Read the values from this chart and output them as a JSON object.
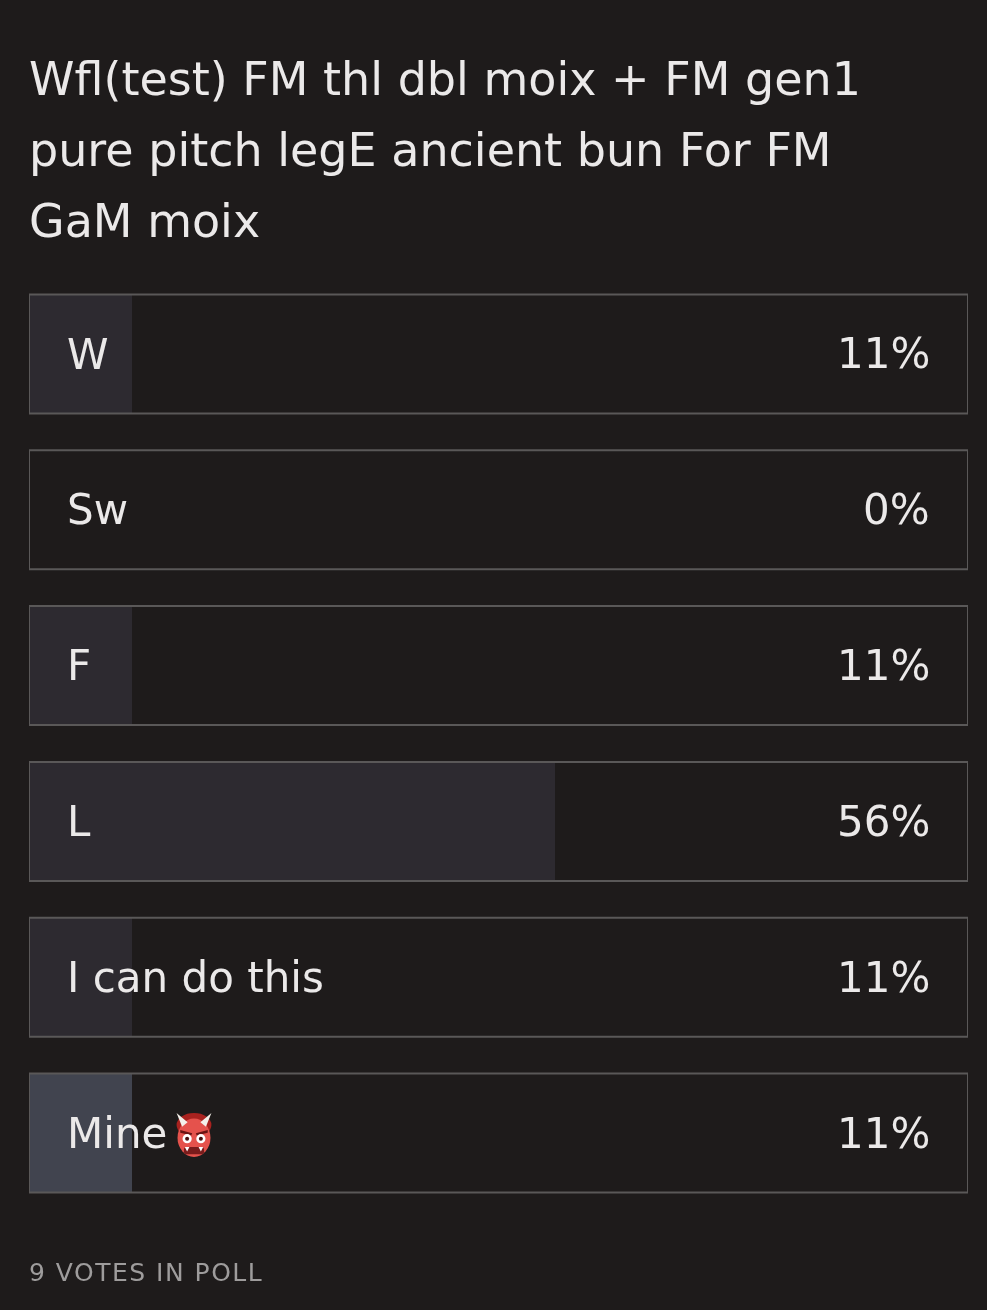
{
  "chart_data": {
    "type": "bar",
    "orientation": "horizontal",
    "title": "Wfl(test) FM thl dbl moix + FM gen1 pure pitch legE ancient bun For FM GaM moix",
    "categories": [
      "W",
      "Sw",
      "F",
      "L",
      "I can do this",
      "Mine"
    ],
    "values": [
      11,
      0,
      11,
      56,
      11,
      11
    ],
    "value_labels": [
      "11%",
      "0%",
      "11%",
      "56%",
      "11%",
      "11%"
    ],
    "colors": [
      "#2d2a30",
      "#2d2a30",
      "#2d2a30",
      "#2d2a30",
      "#2d2a30",
      "#41444f"
    ],
    "xlim": [
      0,
      100
    ],
    "annotations": [
      "9 VOTES IN POLL"
    ]
  }
}
